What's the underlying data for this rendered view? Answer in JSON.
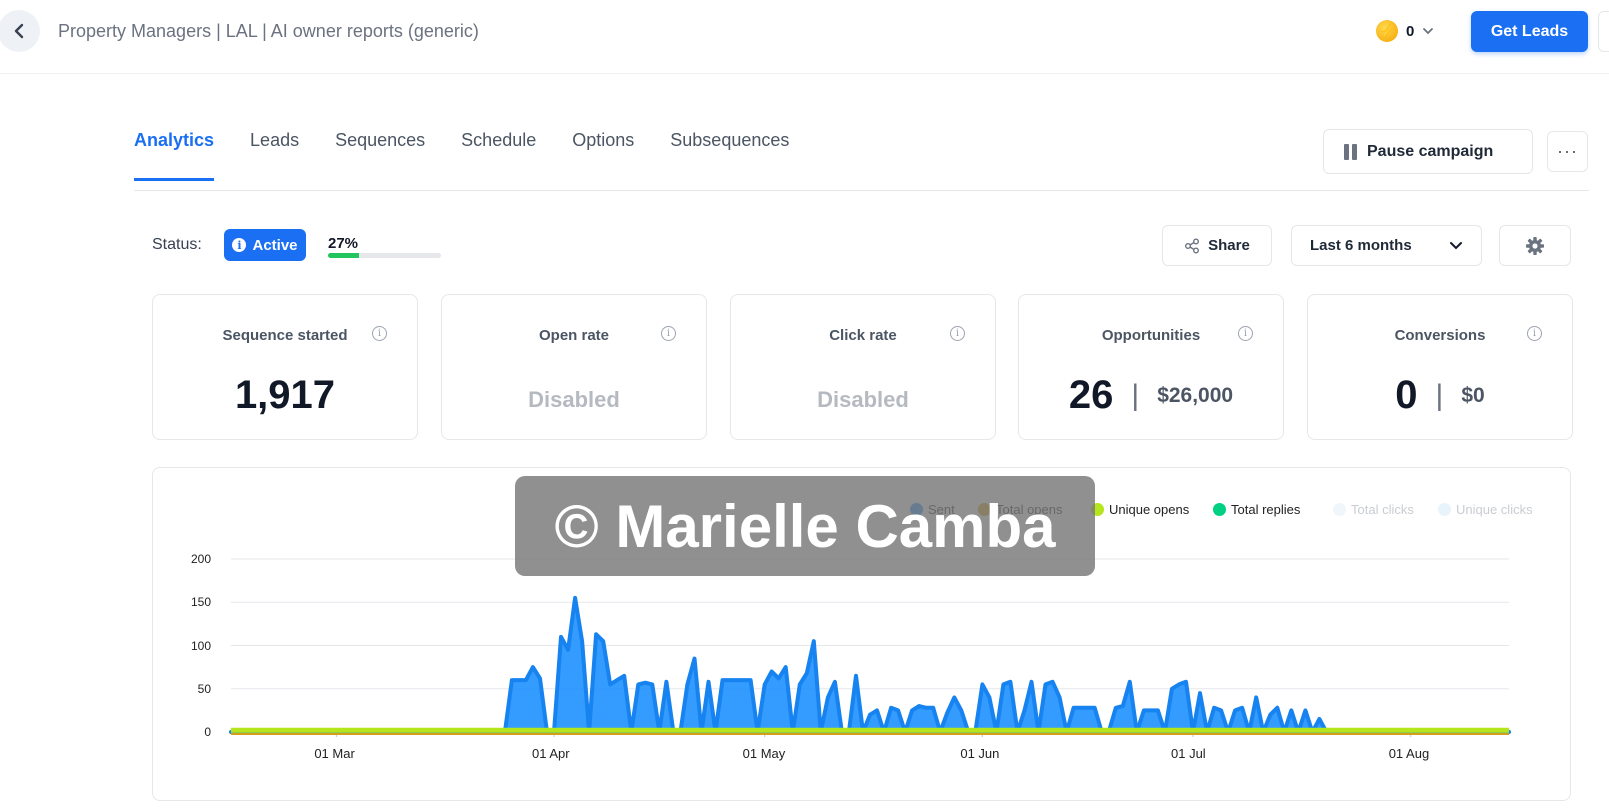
{
  "header": {
    "breadcrumb": "Property Managers | LAL | AI owner reports (generic)",
    "credits": "0",
    "get_leads_label": "Get Leads"
  },
  "tabs": [
    "Analytics",
    "Leads",
    "Sequences",
    "Schedule",
    "Options",
    "Subsequences"
  ],
  "actions": {
    "pause_label": "Pause campaign",
    "more_label": "···"
  },
  "status": {
    "label": "Status:",
    "badge": "Active",
    "progress_label": "27%",
    "progress_value": 0.27,
    "share_label": "Share",
    "range_label": "Last 6 months"
  },
  "cards": [
    {
      "title": "Sequence started",
      "value": "1,917"
    },
    {
      "title": "Open rate",
      "value": "Disabled"
    },
    {
      "title": "Click rate",
      "value": "Disabled"
    },
    {
      "title": "Opportunities",
      "value": "26",
      "sub": "$26,000"
    },
    {
      "title": "Conversions",
      "value": "0",
      "sub": "$0"
    }
  ],
  "watermark": "© Marielle Camba",
  "chart_data": {
    "type": "area",
    "legend": [
      {
        "name": "Sent",
        "color": "#1e90ff"
      },
      {
        "name": "Total opens",
        "color": "#d4a017"
      },
      {
        "name": "Unique opens",
        "color": "#b5e61d"
      },
      {
        "name": "Total replies",
        "color": "#00d084"
      },
      {
        "name": "Total clicks",
        "color": "#f0f7fb"
      },
      {
        "name": "Unique clicks",
        "color": "#e8f4fb"
      }
    ],
    "yticks": [
      0,
      50,
      100,
      150,
      200
    ],
    "ylim": [
      0,
      200
    ],
    "xticks": [
      "01 Mar",
      "01 Apr",
      "01 May",
      "01 Jun",
      "01 Jul",
      "01 Aug"
    ],
    "x_start": "2024-02-15",
    "x_end": "2024-08-15",
    "series": [
      {
        "name": "Sent",
        "points": [
          [
            "2024-02-15",
            0
          ],
          [
            "2024-03-25",
            0
          ],
          [
            "2024-03-26",
            60
          ],
          [
            "2024-03-28",
            60
          ],
          [
            "2024-03-29",
            75
          ],
          [
            "2024-03-30",
            62
          ],
          [
            "2024-03-31",
            0
          ],
          [
            "2024-04-01",
            0
          ],
          [
            "2024-04-02",
            110
          ],
          [
            "2024-04-03",
            95
          ],
          [
            "2024-04-04",
            155
          ],
          [
            "2024-04-05",
            105
          ],
          [
            "2024-04-06",
            0
          ],
          [
            "2024-04-07",
            113
          ],
          [
            "2024-04-08",
            105
          ],
          [
            "2024-04-09",
            55
          ],
          [
            "2024-04-10",
            60
          ],
          [
            "2024-04-11",
            65
          ],
          [
            "2024-04-12",
            0
          ],
          [
            "2024-04-13",
            55
          ],
          [
            "2024-04-14",
            57
          ],
          [
            "2024-04-15",
            55
          ],
          [
            "2024-04-16",
            0
          ],
          [
            "2024-04-17",
            58
          ],
          [
            "2024-04-18",
            0
          ],
          [
            "2024-04-19",
            0
          ],
          [
            "2024-04-20",
            55
          ],
          [
            "2024-04-21",
            85
          ],
          [
            "2024-04-22",
            0
          ],
          [
            "2024-04-23",
            58
          ],
          [
            "2024-04-24",
            0
          ],
          [
            "2024-04-25",
            60
          ],
          [
            "2024-04-27",
            60
          ],
          [
            "2024-04-29",
            60
          ],
          [
            "2024-04-30",
            0
          ],
          [
            "2024-05-01",
            55
          ],
          [
            "2024-05-02",
            70
          ],
          [
            "2024-05-03",
            62
          ],
          [
            "2024-05-04",
            75
          ],
          [
            "2024-05-05",
            0
          ],
          [
            "2024-05-06",
            55
          ],
          [
            "2024-05-07",
            68
          ],
          [
            "2024-05-08",
            105
          ],
          [
            "2024-05-09",
            0
          ],
          [
            "2024-05-10",
            40
          ],
          [
            "2024-05-11",
            58
          ],
          [
            "2024-05-12",
            0
          ],
          [
            "2024-05-13",
            0
          ],
          [
            "2024-05-14",
            65
          ],
          [
            "2024-05-15",
            0
          ],
          [
            "2024-05-16",
            20
          ],
          [
            "2024-05-17",
            25
          ],
          [
            "2024-05-18",
            0
          ],
          [
            "2024-05-19",
            28
          ],
          [
            "2024-05-20",
            25
          ],
          [
            "2024-05-21",
            0
          ],
          [
            "2024-05-22",
            25
          ],
          [
            "2024-05-23",
            30
          ],
          [
            "2024-05-24",
            28
          ],
          [
            "2024-05-25",
            28
          ],
          [
            "2024-05-26",
            0
          ],
          [
            "2024-05-27",
            22
          ],
          [
            "2024-05-28",
            40
          ],
          [
            "2024-05-29",
            25
          ],
          [
            "2024-05-30",
            0
          ],
          [
            "2024-05-31",
            0
          ],
          [
            "2024-06-01",
            55
          ],
          [
            "2024-06-02",
            40
          ],
          [
            "2024-06-03",
            0
          ],
          [
            "2024-06-04",
            55
          ],
          [
            "2024-06-05",
            58
          ],
          [
            "2024-06-06",
            0
          ],
          [
            "2024-06-07",
            25
          ],
          [
            "2024-06-08",
            58
          ],
          [
            "2024-06-09",
            0
          ],
          [
            "2024-06-10",
            55
          ],
          [
            "2024-06-11",
            58
          ],
          [
            "2024-06-12",
            40
          ],
          [
            "2024-06-13",
            0
          ],
          [
            "2024-06-14",
            28
          ],
          [
            "2024-06-17",
            28
          ],
          [
            "2024-06-18",
            0
          ],
          [
            "2024-06-19",
            0
          ],
          [
            "2024-06-20",
            28
          ],
          [
            "2024-06-21",
            30
          ],
          [
            "2024-06-22",
            58
          ],
          [
            "2024-06-23",
            0
          ],
          [
            "2024-06-24",
            25
          ],
          [
            "2024-06-26",
            25
          ],
          [
            "2024-06-27",
            0
          ],
          [
            "2024-06-28",
            50
          ],
          [
            "2024-06-29",
            55
          ],
          [
            "2024-06-30",
            58
          ],
          [
            "2024-07-01",
            0
          ],
          [
            "2024-07-02",
            45
          ],
          [
            "2024-07-03",
            0
          ],
          [
            "2024-07-04",
            28
          ],
          [
            "2024-07-05",
            25
          ],
          [
            "2024-07-06",
            0
          ],
          [
            "2024-07-07",
            25
          ],
          [
            "2024-07-08",
            28
          ],
          [
            "2024-07-09",
            0
          ],
          [
            "2024-07-10",
            40
          ],
          [
            "2024-07-11",
            0
          ],
          [
            "2024-07-12",
            20
          ],
          [
            "2024-07-13",
            28
          ],
          [
            "2024-07-14",
            0
          ],
          [
            "2024-07-15",
            25
          ],
          [
            "2024-07-16",
            0
          ],
          [
            "2024-07-17",
            25
          ],
          [
            "2024-07-18",
            0
          ],
          [
            "2024-07-19",
            15
          ],
          [
            "2024-07-20",
            0
          ],
          [
            "2024-08-15",
            0
          ]
        ]
      },
      {
        "name": "Unique opens",
        "points": [
          [
            "2024-02-15",
            2
          ],
          [
            "2024-08-15",
            2
          ]
        ]
      }
    ]
  }
}
